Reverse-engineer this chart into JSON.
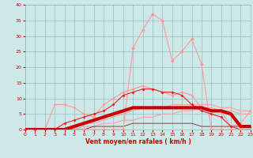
{
  "x": [
    0,
    1,
    2,
    3,
    4,
    5,
    6,
    7,
    8,
    9,
    10,
    11,
    12,
    13,
    14,
    15,
    16,
    17,
    18,
    19,
    20,
    21,
    22,
    23
  ],
  "line_peak_pink": [
    0,
    0,
    0,
    0,
    0,
    0,
    0,
    0,
    0,
    0,
    0,
    26,
    32,
    37,
    35,
    22,
    25,
    29,
    21,
    0,
    0,
    0,
    0,
    0
  ],
  "line_med_pink": [
    0,
    0,
    0,
    8,
    8,
    7,
    5,
    4,
    8,
    10,
    12,
    13,
    14,
    13,
    12,
    11,
    12,
    11,
    7,
    6,
    6,
    1,
    2,
    6
  ],
  "line_red_marker": [
    0,
    0,
    0,
    0,
    2,
    3,
    4,
    5,
    6,
    8,
    11,
    12,
    13,
    13,
    12,
    12,
    11,
    8,
    6,
    5,
    4,
    1,
    1,
    1
  ],
  "line_straight1": [
    0,
    0,
    0,
    0,
    0,
    1,
    2,
    2,
    3,
    4,
    5,
    6,
    7,
    7,
    7,
    8,
    8,
    8,
    8,
    8,
    7,
    7,
    6,
    6
  ],
  "line_straight2": [
    0,
    0,
    0,
    0,
    0,
    0,
    1,
    1,
    2,
    2,
    3,
    3,
    4,
    4,
    5,
    5,
    6,
    6,
    7,
    7,
    6,
    6,
    5,
    5
  ],
  "line_thick_dark": [
    0,
    0,
    0,
    0,
    0,
    1,
    2,
    3,
    4,
    5,
    6,
    7,
    7,
    7,
    7,
    7,
    7,
    7,
    7,
    6,
    6,
    5,
    1,
    1
  ],
  "line_thin_dark": [
    0,
    0,
    0,
    0,
    0,
    0,
    0,
    1,
    1,
    1,
    1,
    2,
    2,
    2,
    2,
    2,
    2,
    2,
    1,
    1,
    1,
    1,
    0,
    0
  ],
  "xlabel": "Vent moyen/en rafales ( km/h )",
  "xlim": [
    0,
    23
  ],
  "ylim": [
    0,
    40
  ],
  "yticks": [
    0,
    5,
    10,
    15,
    20,
    25,
    30,
    35,
    40
  ],
  "xticks": [
    0,
    1,
    2,
    3,
    4,
    5,
    6,
    7,
    8,
    9,
    10,
    11,
    12,
    13,
    14,
    15,
    16,
    17,
    18,
    19,
    20,
    21,
    22,
    23
  ],
  "bg_color": "#cce8e8",
  "grid_color": "#99bbbb",
  "color_pink_light": "#ff9999",
  "color_pink_mid": "#ff6666",
  "color_red": "#ee2222",
  "color_red_dark": "#bb0000",
  "color_red_thick": "#cc0000",
  "color_dark": "#660000"
}
